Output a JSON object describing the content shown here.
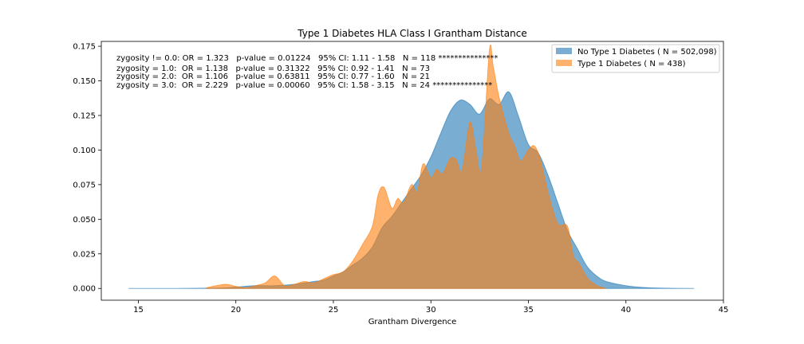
{
  "chart_data": {
    "type": "area",
    "title": "Type 1 Diabetes HLA Class I Grantham Distance",
    "xlabel": "Grantham Divergence",
    "ylabel": "",
    "xlim": [
      13.1,
      45
    ],
    "ylim": [
      -0.0085,
      0.1785
    ],
    "xticks": [
      "15",
      "20",
      "25",
      "30",
      "35",
      "40",
      "45"
    ],
    "yticks": [
      "0.000",
      "0.025",
      "0.050",
      "0.075",
      "0.100",
      "0.125",
      "0.150",
      "0.175"
    ],
    "legend_position": "top-right",
    "grid": false,
    "annotations": [
      "zygosity != 0.0: OR = 1.323   p-value = 0.01224   95% CI: 1.11 - 1.58   N = 118 ***************",
      "zygosity = 1.0:  OR = 1.138   p-value = 0.31322   95% CI: 0.92 - 1.41   N = 73",
      "zygosity = 2.0:  OR = 1.106   p-value = 0.63811   95% CI: 0.77 - 1.60   N = 21",
      "zygosity = 3.0:  OR = 2.229   p-value = 0.00060   95% CI: 1.58 - 3.15   N = 24 ***************"
    ],
    "series": [
      {
        "name": "No Type 1 Diabetes ( N = 502,098)",
        "color": "#1f77b4",
        "x": [
          14.5,
          17,
          18.5,
          19.5,
          20,
          21,
          22,
          23,
          24,
          24.5,
          25,
          25.5,
          26,
          26.5,
          27,
          27.5,
          28,
          28.5,
          29,
          29.5,
          30,
          30.5,
          31,
          31.5,
          32,
          32.5,
          33,
          33.5,
          34,
          34.5,
          35,
          35.5,
          36,
          36.5,
          37,
          37.5,
          38,
          38.5,
          39,
          40,
          41,
          42,
          43.5
        ],
        "y": [
          0,
          0,
          0.0002,
          0.0005,
          0.001,
          0.002,
          0.002,
          0.003,
          0.005,
          0.006,
          0.009,
          0.012,
          0.017,
          0.022,
          0.03,
          0.044,
          0.052,
          0.062,
          0.072,
          0.082,
          0.095,
          0.112,
          0.128,
          0.136,
          0.133,
          0.126,
          0.137,
          0.133,
          0.142,
          0.124,
          0.104,
          0.098,
          0.082,
          0.062,
          0.042,
          0.029,
          0.016,
          0.009,
          0.005,
          0.002,
          0.0006,
          0.0002,
          0
        ]
      },
      {
        "name": "Type 1 Diabetes ( N = 438)",
        "color": "#ff7f0e",
        "x": [
          18.5,
          19,
          19.5,
          20,
          20.5,
          21,
          21.5,
          22,
          22.5,
          23,
          23.5,
          24,
          24.5,
          25,
          25.5,
          26,
          26.5,
          27,
          27.3,
          27.6,
          28,
          28.3,
          28.6,
          29,
          29.3,
          29.6,
          30,
          30.3,
          30.6,
          31,
          31.3,
          31.6,
          32,
          32.3,
          32.6,
          33,
          33.2,
          33.5,
          34,
          34.3,
          34.6,
          35,
          35.3,
          35.6,
          36,
          36.5,
          37,
          37.3,
          37.6,
          38,
          38.3,
          38.6,
          39
        ],
        "y": [
          0.0005,
          0.002,
          0.003,
          0.0015,
          0.0005,
          0.002,
          0.004,
          0.009,
          0.002,
          0.003,
          0.005,
          0.004,
          0.007,
          0.01,
          0.012,
          0.02,
          0.032,
          0.045,
          0.068,
          0.073,
          0.058,
          0.065,
          0.062,
          0.075,
          0.07,
          0.09,
          0.08,
          0.086,
          0.083,
          0.094,
          0.093,
          0.085,
          0.12,
          0.101,
          0.087,
          0.172,
          0.16,
          0.138,
          0.112,
          0.103,
          0.092,
          0.1,
          0.103,
          0.094,
          0.07,
          0.047,
          0.045,
          0.024,
          0.018,
          0.008,
          0.004,
          0.0015,
          0
        ]
      }
    ]
  }
}
